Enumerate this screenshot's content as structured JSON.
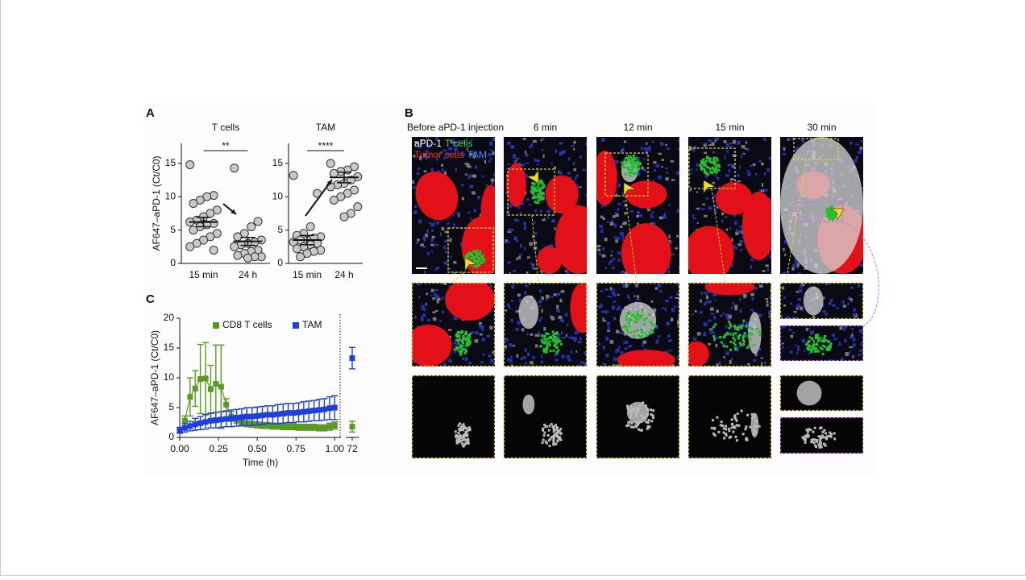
{
  "panels": {
    "a": "A",
    "b": "B",
    "c": "C"
  },
  "chart_data": [
    {
      "type": "dotplot",
      "title": "T cells",
      "y_label": "AF647–aPD-1 (Ct/C0)",
      "categories": [
        "15 min",
        "24 h"
      ],
      "values": [
        [
          14.8,
          10.2,
          10,
          9.5,
          9,
          8,
          7.5,
          7,
          6.5,
          6.2,
          6,
          5.8,
          5.5,
          5,
          4.5,
          4,
          3.5,
          3,
          2.5,
          2
        ],
        [
          14.3,
          6.3,
          5.5,
          4.5,
          4,
          3.5,
          3.2,
          3,
          2.8,
          2.5,
          2,
          1.8,
          1.5,
          1.2,
          1,
          1,
          0.8
        ]
      ],
      "means": [
        6.2,
        3.3
      ],
      "sem": [
        0.7,
        0.6
      ],
      "significance": "**",
      "ylim": [
        0,
        18
      ],
      "yticks": [
        0,
        5,
        10,
        15
      ],
      "color": "#c8c8c8"
    },
    {
      "type": "dotplot",
      "title": "TAM",
      "categories": [
        "15 min",
        "24 h"
      ],
      "values": [
        [
          13.2,
          10.5,
          5.5,
          4.5,
          4.2,
          4,
          3.8,
          3.5,
          3.5,
          3.2,
          3,
          2.8,
          2.5,
          2.2,
          2,
          1.8,
          1.5,
          1
        ],
        [
          15,
          14.5,
          14,
          13.8,
          13.5,
          13,
          12.5,
          12,
          11.8,
          11.5,
          11,
          10.5,
          10,
          9.5,
          8.5,
          7.5,
          7
        ]
      ],
      "means": [
        3.5,
        12.9
      ],
      "sem": [
        0.7,
        0.8
      ],
      "significance": "****",
      "ylim": [
        0,
        18
      ],
      "yticks": [
        0,
        5,
        10,
        15
      ],
      "color": "#c8c8c8"
    },
    {
      "type": "line",
      "y_label": "AF647–aPD-1 (Ct/C0)",
      "x_label": "Time (h)",
      "xlim": [
        0,
        1.04
      ],
      "xticks": [
        {
          "value": 0,
          "label": "0.00"
        },
        {
          "value": 0.25,
          "label": "0.25"
        },
        {
          "value": 0.5,
          "label": "0.50"
        },
        {
          "value": 0.75,
          "label": "0.75"
        },
        {
          "value": 1,
          "label": "1.00"
        }
      ],
      "break_tick": 72,
      "ylim": [
        0,
        20
      ],
      "yticks": [
        0,
        5,
        10,
        15,
        20
      ],
      "series": [
        {
          "name": "CD8 T cells",
          "color": "#5a9a1e",
          "x": [
            0.033,
            0.067,
            0.1,
            0.133,
            0.167,
            0.2,
            0.233,
            0.267,
            0.3,
            0.333,
            0.367,
            0.4,
            0.433,
            0.467,
            0.5,
            0.533,
            0.567,
            0.6,
            0.633,
            0.667,
            0.7,
            0.733,
            0.767,
            0.8,
            0.833,
            0.867,
            0.9,
            0.933,
            0.967,
            1
          ],
          "values": [
            2.8,
            6.8,
            8.2,
            9.8,
            9.9,
            8.1,
            9,
            8.5,
            5.5,
            3.5,
            3,
            2.5,
            2.3,
            2.2,
            2.1,
            2,
            2,
            1.9,
            1.9,
            1.8,
            1.8,
            1.8,
            1.7,
            1.7,
            1.7,
            1.7,
            1.6,
            1.6,
            1.8,
            2
          ],
          "errors": [
            0.8,
            3.2,
            3,
            5.8,
            6,
            4,
            6.5,
            7,
            1,
            0.8,
            0.6,
            0.6,
            0.5,
            0.5,
            0.5,
            0.5,
            0.5,
            0.5,
            0.5,
            0.5,
            0.5,
            0.5,
            0.5,
            0.5,
            0.5,
            0.5,
            0.5,
            0.5,
            0.6,
            0.6
          ],
          "break_value": 1.8,
          "break_error": 0.9
        },
        {
          "name": "TAM",
          "color": "#1f3fdc",
          "x": [
            0,
            0.033,
            0.067,
            0.1,
            0.133,
            0.167,
            0.2,
            0.233,
            0.267,
            0.3,
            0.333,
            0.367,
            0.4,
            0.433,
            0.467,
            0.5,
            0.533,
            0.567,
            0.6,
            0.633,
            0.667,
            0.7,
            0.733,
            0.767,
            0.8,
            0.833,
            0.867,
            0.9,
            0.933,
            0.967,
            1
          ],
          "values": [
            1.2,
            1.6,
            1.9,
            2.2,
            2.4,
            2.6,
            2.8,
            2.9,
            3,
            3.1,
            3.2,
            3.3,
            3.4,
            3.5,
            3.5,
            3.6,
            3.7,
            3.8,
            3.8,
            3.9,
            4,
            4.1,
            4.1,
            4.2,
            4.3,
            4.4,
            4.5,
            4.6,
            4.7,
            4.9,
            5
          ],
          "errors": [
            0.5,
            0.7,
            0.8,
            1,
            1.1,
            1.2,
            1.2,
            1.3,
            1.3,
            1.3,
            1.4,
            1.4,
            1.4,
            1.5,
            1.5,
            1.5,
            1.5,
            1.5,
            1.5,
            1.6,
            1.6,
            1.6,
            1.6,
            1.6,
            1.7,
            1.7,
            1.7,
            1.8,
            1.8,
            1.9,
            2
          ],
          "break_value": 13.3,
          "break_error": 1.8
        }
      ]
    }
  ],
  "panel_b": {
    "columns": [
      "Before aPD-1 injection",
      "6 min",
      "12 min",
      "15 min",
      "30 min"
    ],
    "legend": {
      "channel": "aPD-1",
      "t_cells": "T cells",
      "tumor": "Tumor cells",
      "tam": "TAM"
    },
    "bottom_label": "aPD-1"
  }
}
